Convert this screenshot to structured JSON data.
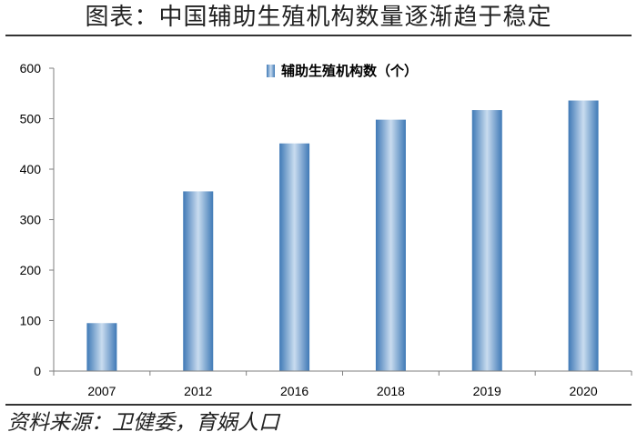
{
  "title": "图表：中国辅助生殖机构数量逐渐趋于稳定",
  "source": "资料来源：卫健委，育娲人口",
  "colors": {
    "bar_edge": "#3f79b6",
    "bar_center": "#c9dcef",
    "axis": "#7f7f7f",
    "rule": "#333333"
  },
  "chart_data": {
    "type": "bar",
    "categories": [
      "2007",
      "2012",
      "2016",
      "2018",
      "2019",
      "2020"
    ],
    "series": [
      {
        "name": "辅助生殖机构数（个）",
        "values": [
          95,
          356,
          451,
          498,
          517,
          536
        ]
      }
    ],
    "ylim": [
      0,
      600
    ],
    "yticks": [
      0,
      100,
      200,
      300,
      400,
      500,
      600
    ],
    "grid": false,
    "legend_position": "top-center"
  }
}
